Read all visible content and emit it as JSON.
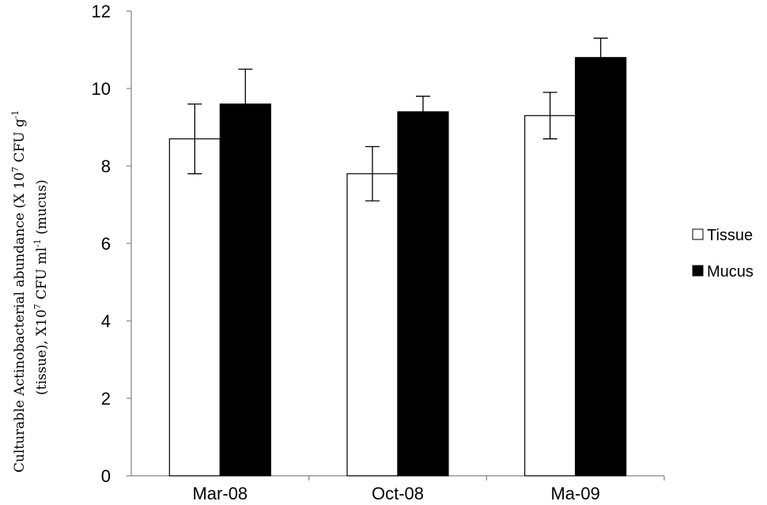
{
  "chart_data": {
    "type": "bar",
    "categories": [
      "Mar-08",
      "Oct-08",
      "Ma-09"
    ],
    "series": [
      {
        "name": "Tissue",
        "values": [
          8.7,
          7.8,
          9.3
        ],
        "error": [
          0.9,
          0.7,
          0.6
        ],
        "fill": "#ffffff",
        "stroke": "#000000"
      },
      {
        "name": "Mucus",
        "values": [
          9.6,
          9.4,
          10.8
        ],
        "error": [
          0.9,
          0.4,
          0.5
        ],
        "fill": "#000000",
        "stroke": "#000000"
      }
    ],
    "ylim": [
      0,
      12
    ],
    "yticks": [
      0,
      2,
      4,
      6,
      8,
      10,
      12
    ],
    "ylabel_line1": {
      "prefix": "Culturable  Actinobacterial abundance (X 10",
      "sup1": "7",
      "mid": " CFU g",
      "sup2": "-1"
    },
    "ylabel_line2": {
      "prefix": "(tissue), X10",
      "sup1": "7",
      "mid": " CFU ml",
      "sup2": "-1",
      "suffix": " (mucus)"
    },
    "xlabel": "",
    "grid": false,
    "legend_position": "right"
  }
}
